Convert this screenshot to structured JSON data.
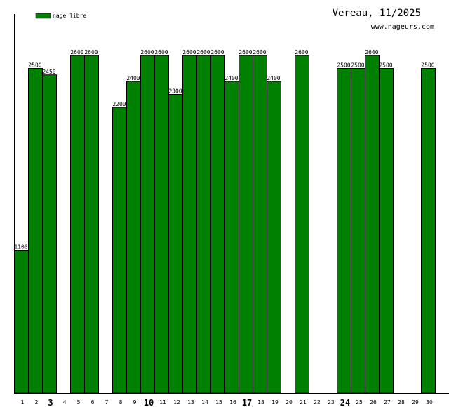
{
  "header": {
    "title": "Vereau, 11/2025",
    "site": "www.nageurs.com"
  },
  "legend": {
    "label": "nage libre",
    "color": "#008000"
  },
  "chart_data": {
    "type": "bar",
    "categories": [
      "1",
      "2",
      "3",
      "4",
      "5",
      "6",
      "7",
      "8",
      "9",
      "10",
      "11",
      "12",
      "13",
      "14",
      "15",
      "16",
      "17",
      "18",
      "19",
      "20",
      "21",
      "22",
      "23",
      "24",
      "25",
      "26",
      "27",
      "28",
      "29",
      "30"
    ],
    "bold_categories": [
      "3",
      "10",
      "17",
      "24"
    ],
    "series": [
      {
        "name": "nage libre",
        "color": "#008000",
        "values": [
          1100,
          2500,
          2450,
          null,
          2600,
          2600,
          null,
          2200,
          2400,
          2600,
          2600,
          2300,
          2600,
          2600,
          2600,
          2400,
          2600,
          2600,
          2400,
          null,
          2600,
          null,
          null,
          2500,
          2500,
          2600,
          2500,
          null,
          null,
          2500
        ]
      }
    ],
    "ylim": [
      0,
      2600
    ],
    "grid": false,
    "legend_position": "top-left"
  }
}
